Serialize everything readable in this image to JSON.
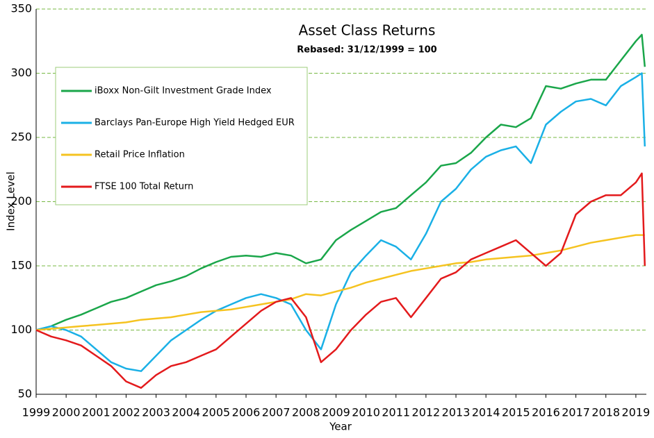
{
  "chart_data": {
    "type": "line",
    "title": "Asset Class Returns",
    "subtitle": "Rebased: 31/12/1999 = 100",
    "x_label": "Year",
    "y_label": "Index Level",
    "x": [
      1999,
      1999.5,
      2000,
      2000.5,
      2001,
      2001.5,
      2002,
      2002.5,
      2003,
      2003.5,
      2004,
      2004.5,
      2005,
      2005.5,
      2006,
      2006.5,
      2007,
      2007.5,
      2008,
      2008.5,
      2009,
      2009.5,
      2010,
      2010.5,
      2011,
      2011.5,
      2012,
      2012.5,
      2013,
      2013.5,
      2014,
      2014.5,
      2015,
      2015.5,
      2016,
      2016.5,
      2017,
      2017.5,
      2018,
      2018.5,
      2019,
      2019.2,
      2019.3
    ],
    "series": [
      {
        "name": "iBoxx Non-Gilt Investment Grade Index",
        "color": "#1aa64a",
        "values": [
          100,
          103,
          108,
          112,
          117,
          122,
          125,
          130,
          135,
          138,
          142,
          148,
          153,
          157,
          158,
          157,
          160,
          158,
          152,
          155,
          170,
          178,
          185,
          192,
          195,
          205,
          215,
          228,
          230,
          238,
          250,
          260,
          258,
          265,
          290,
          288,
          292,
          295,
          295,
          310,
          325,
          330,
          305
        ]
      },
      {
        "name": "Barclays Pan-Europe High Yield Hedged EUR",
        "color": "#1ab0e6",
        "values": [
          100,
          103,
          100,
          95,
          85,
          75,
          70,
          68,
          80,
          92,
          100,
          108,
          115,
          120,
          125,
          128,
          125,
          120,
          100,
          85,
          120,
          145,
          158,
          170,
          165,
          155,
          175,
          200,
          210,
          225,
          235,
          240,
          243,
          230,
          260,
          270,
          278,
          280,
          275,
          290,
          297,
          300,
          243
        ]
      },
      {
        "name": "Retail Price Inflation",
        "color": "#f5c320",
        "values": [
          100,
          101,
          102,
          103,
          104,
          105,
          106,
          108,
          109,
          110,
          112,
          114,
          115,
          116,
          118,
          120,
          122,
          124,
          128,
          127,
          130,
          133,
          137,
          140,
          143,
          146,
          148,
          150,
          152,
          153,
          155,
          156,
          157,
          158,
          160,
          162,
          165,
          168,
          170,
          172,
          174,
          174,
          174
        ]
      },
      {
        "name": "FTSE 100 Total Return",
        "color": "#e31a1c",
        "values": [
          100,
          95,
          92,
          88,
          80,
          72,
          60,
          55,
          65,
          72,
          75,
          80,
          85,
          95,
          105,
          115,
          122,
          125,
          110,
          75,
          85,
          100,
          112,
          122,
          125,
          110,
          125,
          140,
          145,
          155,
          160,
          165,
          170,
          160,
          150,
          160,
          190,
          200,
          205,
          205,
          215,
          222,
          150
        ]
      }
    ],
    "xlim": [
      1999,
      2019.35
    ],
    "xticks": [
      1999,
      2000,
      2001,
      2002,
      2003,
      2004,
      2005,
      2006,
      2007,
      2008,
      2009,
      2010,
      2011,
      2012,
      2013,
      2014,
      2015,
      2016,
      2017,
      2018,
      2019
    ],
    "ylim": [
      50,
      350
    ],
    "yticks": [
      50,
      100,
      150,
      200,
      250,
      300,
      350
    ],
    "grid": true
  }
}
